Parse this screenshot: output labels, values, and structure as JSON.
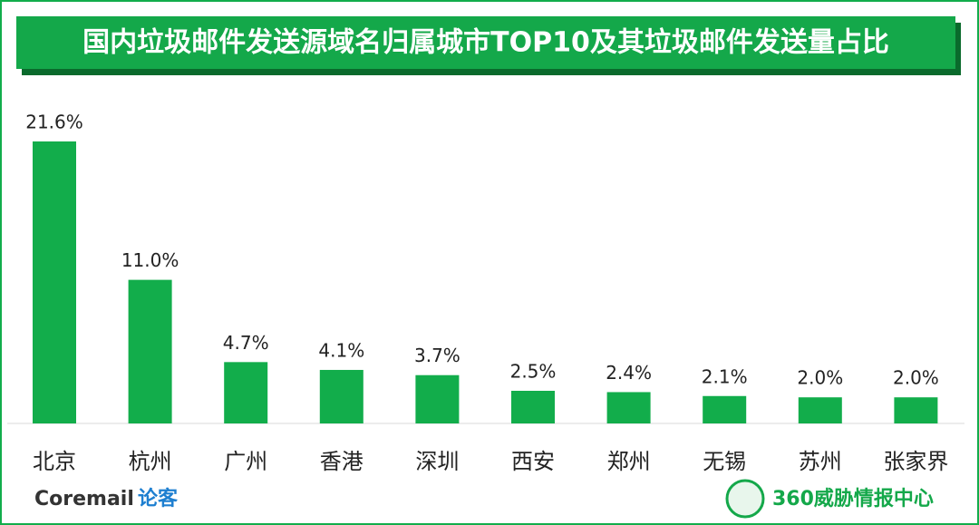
{
  "chart_data": {
    "type": "bar",
    "title": "国内垃圾邮件发送源域名归属城市TOP10及其垃圾邮件发送量占比",
    "categories": [
      "北京",
      "杭州",
      "广州",
      "香港",
      "深圳",
      "西安",
      "郑州",
      "无锡",
      "苏州",
      "张家界"
    ],
    "values": [
      21.6,
      11.0,
      4.7,
      4.1,
      3.7,
      2.5,
      2.4,
      2.1,
      2.0,
      2.0
    ],
    "value_labels": [
      "21.6%",
      "11.0%",
      "4.7%",
      "4.1%",
      "3.7%",
      "2.5%",
      "2.4%",
      "2.1%",
      "2.0%",
      "2.0%"
    ],
    "color": "#12ad4b"
  },
  "footer": {
    "left_logo": "Coremail",
    "left_logo_suffix": "论客",
    "right_logo": "360威胁情报中心"
  }
}
